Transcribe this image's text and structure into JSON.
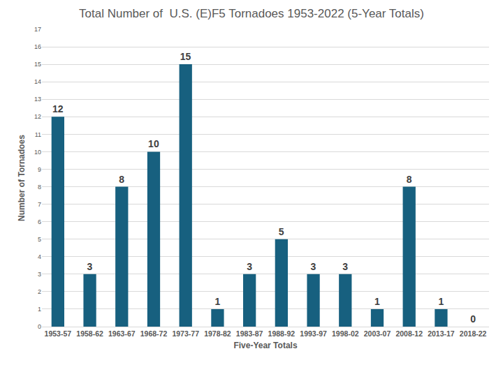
{
  "chart_data": {
    "type": "bar",
    "title": "Total Number of  U.S. (E)F5 Tornadoes 1953-2022 (5-Year Totals)",
    "x_label": "Five-Year Totals",
    "y_label": "Number of Tornadoes",
    "categories": [
      "1953-57",
      "1958-62",
      "1963-67",
      "1968-72",
      "1973-77",
      "1978-82",
      "1983-87",
      "1988-92",
      "1993-97",
      "1998-02",
      "2003-07",
      "2008-12",
      "2013-17",
      "2018-22"
    ],
    "values": [
      12,
      3,
      8,
      10,
      15,
      1,
      3,
      5,
      3,
      3,
      1,
      8,
      1,
      0
    ],
    "color": "#17607f",
    "ylim": [
      0,
      17
    ],
    "yticks": [
      0,
      1,
      2,
      3,
      4,
      5,
      6,
      7,
      8,
      9,
      10,
      11,
      12,
      13,
      14,
      15,
      16,
      17
    ],
    "grid": true,
    "data_labels": true
  }
}
